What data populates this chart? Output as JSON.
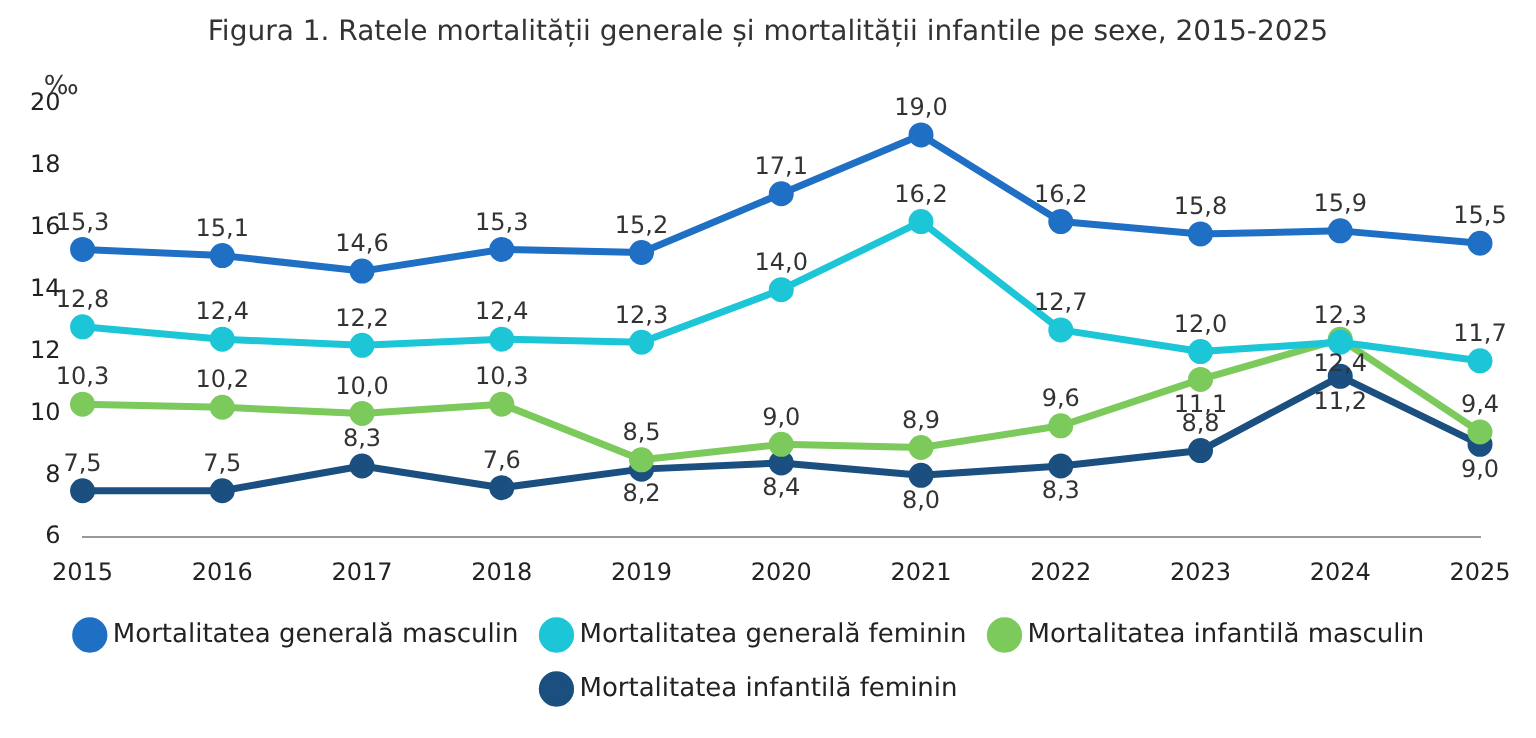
{
  "chart_data": {
    "type": "line",
    "title": "Figura 1. Ratele mortalității generale și mortalității infantile pe sexe, 2015-2025",
    "ylabel": "‰",
    "categories": [
      "2015",
      "2016",
      "2017",
      "2018",
      "2019",
      "2020",
      "2021",
      "2022",
      "2023",
      "2024",
      "2025"
    ],
    "ylim": [
      6,
      20
    ],
    "yticks": [
      6,
      8,
      10,
      12,
      14,
      16,
      18,
      20
    ],
    "grid": false,
    "legend": "bottom",
    "marker": "circle",
    "line_style": "solid",
    "series": [
      {
        "name": "Mortalitatea generală masculin",
        "color": "#1f6fc4",
        "values": [
          15.3,
          15.1,
          14.6,
          15.3,
          15.2,
          17.1,
          19.0,
          16.2,
          15.8,
          15.9,
          15.5
        ],
        "value_labels": [
          "15,3",
          "15,1",
          "14,6",
          "15,3",
          "15,2",
          "17,1",
          "19,0",
          "16,2",
          "15,8",
          "15,9",
          "15,5"
        ]
      },
      {
        "name": "Mortalitatea generală feminin",
        "color": "#1cc6d6",
        "values": [
          12.8,
          12.4,
          12.2,
          12.4,
          12.3,
          14.0,
          16.2,
          12.7,
          12.0,
          12.3,
          11.7
        ],
        "value_labels": [
          "12,8",
          "12,4",
          "12,2",
          "12,4",
          "12,3",
          "14,0",
          "16,2",
          "12,7",
          "12,0",
          "12,3",
          "11,7"
        ]
      },
      {
        "name": "Mortalitatea infantilă masculin",
        "color": "#7cc95c",
        "values": [
          10.3,
          10.2,
          10.0,
          10.3,
          8.5,
          9.0,
          8.9,
          9.6,
          11.1,
          12.4,
          9.4
        ],
        "value_labels": [
          "10,3",
          "10,2",
          "10,0",
          "10,3",
          "8,5",
          "9,0",
          "8,9",
          "9,6",
          "11,1",
          "12,4",
          "9,4"
        ]
      },
      {
        "name": "Mortalitatea infantilă feminin",
        "color": "#1b4f80",
        "values": [
          7.5,
          7.5,
          8.3,
          7.6,
          8.2,
          8.4,
          8.0,
          8.3,
          8.8,
          11.2,
          9.0
        ],
        "value_labels": [
          "7,5",
          "7,5",
          "8,3",
          "7,6",
          "8,2",
          "8,4",
          "8,0",
          "8,3",
          "8,8",
          "11,2",
          "9,0"
        ]
      }
    ]
  }
}
